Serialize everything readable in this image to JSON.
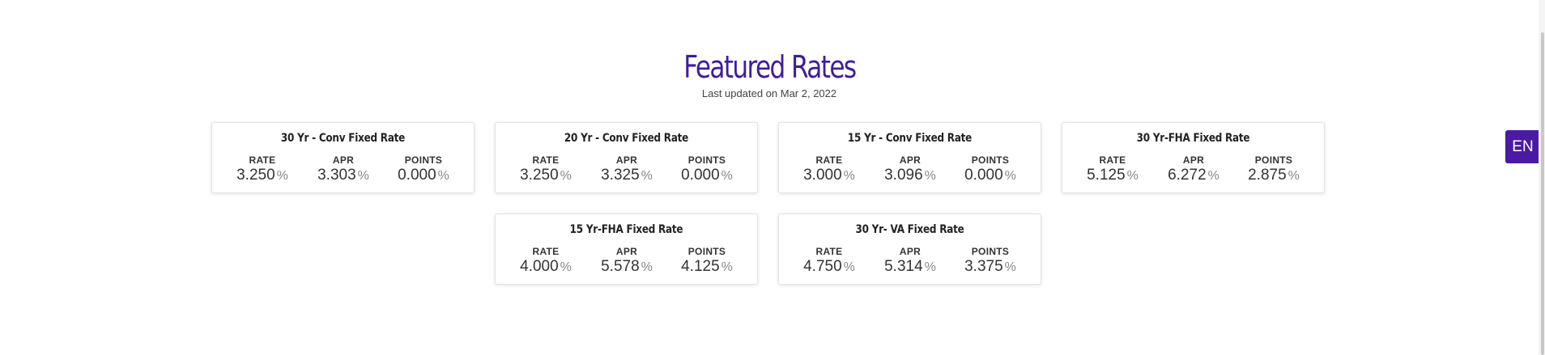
{
  "header": {
    "title": "Featured Rates",
    "last_updated": "Last updated on Mar 2, 2022"
  },
  "labels": {
    "rate": "RATE",
    "apr": "APR",
    "points": "POINTS",
    "percent": "%"
  },
  "cards": [
    {
      "title": "30 Yr - Conv Fixed Rate",
      "rate": "3.250",
      "apr": "3.303",
      "points": "0.000"
    },
    {
      "title": "20 Yr - Conv Fixed Rate",
      "rate": "3.250",
      "apr": "3.325",
      "points": "0.000"
    },
    {
      "title": "15 Yr - Conv Fixed Rate",
      "rate": "3.000",
      "apr": "3.096",
      "points": "0.000"
    },
    {
      "title": "30 Yr-FHA Fixed Rate",
      "rate": "5.125",
      "apr": "6.272",
      "points": "2.875"
    },
    {
      "title": "15 Yr-FHA Fixed Rate",
      "rate": "4.000",
      "apr": "5.578",
      "points": "4.125"
    },
    {
      "title": "30 Yr- VA Fixed Rate",
      "rate": "4.750",
      "apr": "5.314",
      "points": "3.375"
    }
  ],
  "language_button": {
    "label": "EN"
  },
  "colors": {
    "title": "#3f1d9c",
    "language_button": "#4a1aa3"
  }
}
